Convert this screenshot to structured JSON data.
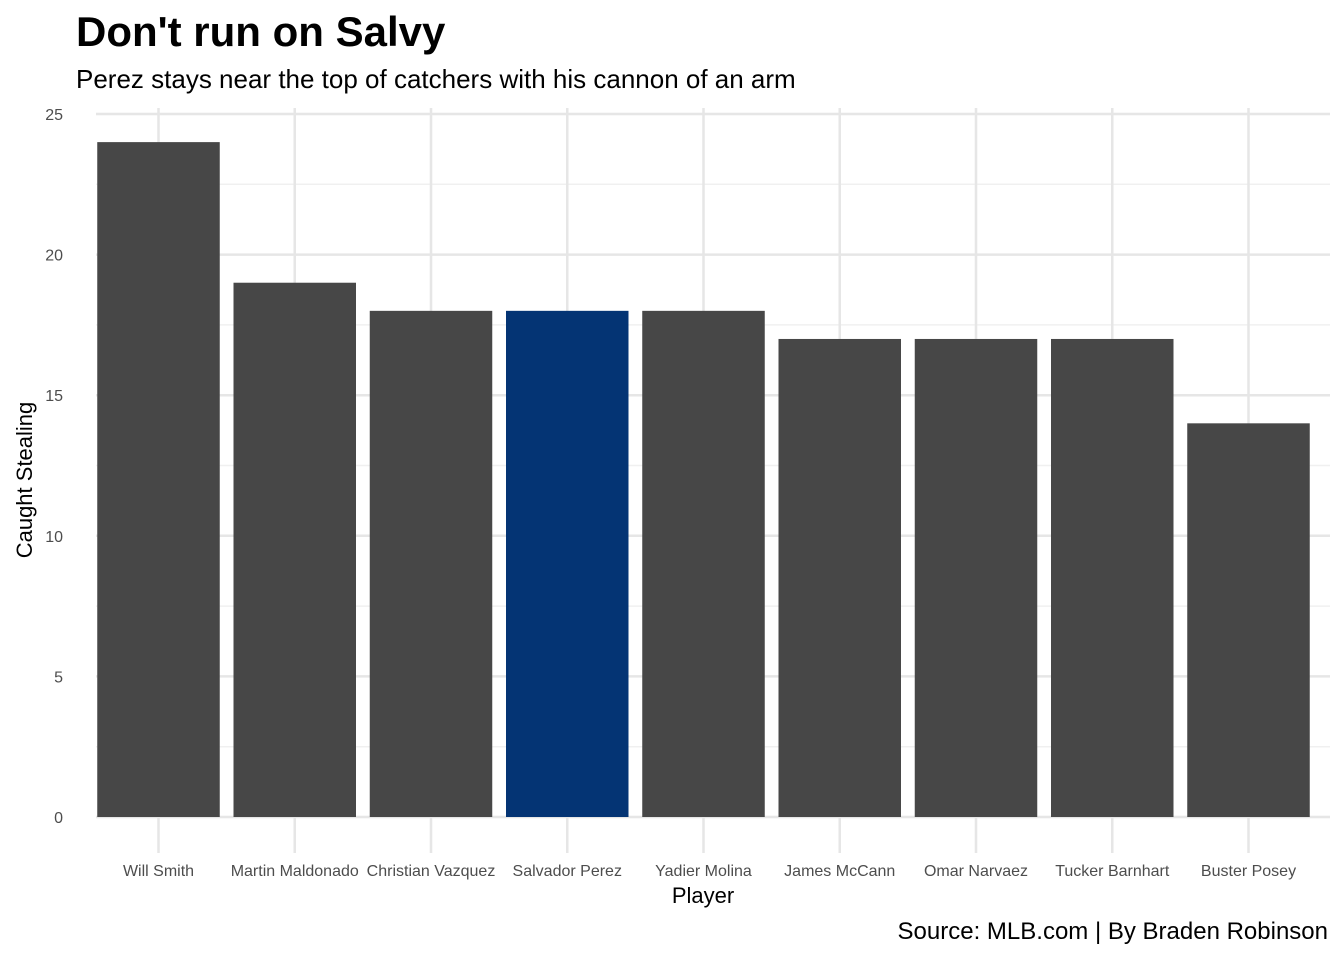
{
  "chart_data": {
    "type": "bar",
    "title": "Don't run on Salvy",
    "subtitle": "Perez stays near the top of catchers with his cannon of an arm",
    "caption": "Source: MLB.com | By Braden Robinson",
    "xlabel": "Player",
    "ylabel": "Caught Stealing",
    "categories": [
      "Will Smith",
      "Martin Maldonado",
      "Christian Vazquez",
      "Salvador Perez",
      "Yadier Molina",
      "James McCann",
      "Omar Narvaez",
      "Tucker Barnhart",
      "Buster Posey"
    ],
    "values": [
      24,
      19,
      18,
      18,
      18,
      17,
      17,
      17,
      14
    ],
    "ylim": [
      0,
      25
    ],
    "yticks": [
      0,
      5,
      10,
      15,
      20,
      25
    ],
    "grid": true,
    "legend": "none",
    "highlight_category": "Salvador Perez",
    "colors": {
      "bar": "#474747",
      "highlight": "#043474",
      "grid": "#e6e6e6",
      "tick_text": "#4d4d4d"
    }
  }
}
